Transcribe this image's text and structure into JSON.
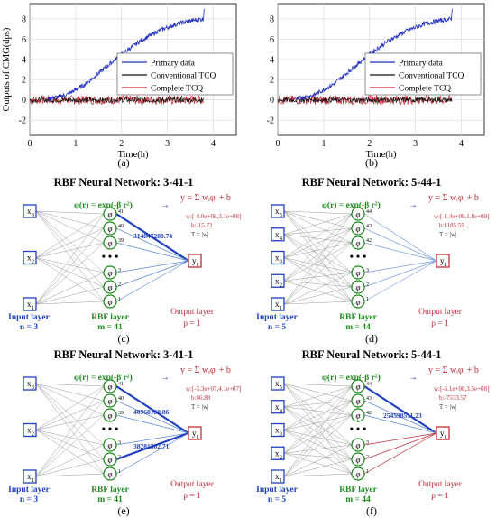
{
  "charts": [
    {
      "id": "a",
      "caption": "(a)",
      "ylabel": "Outputs of CMG(dps)",
      "xlabel": "Time(h)",
      "xticks": [
        "0",
        "1",
        "2",
        "3",
        "4"
      ],
      "yticks": [
        "8",
        "6",
        "4",
        "2",
        "0",
        "-2"
      ],
      "legend": [
        "Primary data",
        "Conventional TCQ",
        "Complete TCQ"
      ],
      "show_ylabel": true
    },
    {
      "id": "b",
      "caption": "(b)",
      "ylabel": "",
      "xlabel": "Time(h)",
      "xticks": [
        "0",
        "1",
        "2",
        "3",
        "4"
      ],
      "yticks": [
        "8",
        "6",
        "4",
        "2",
        "0",
        "-2"
      ],
      "legend": [
        "Primary data",
        "Conventional TCQ",
        "Complete TCQ"
      ],
      "show_ylabel": false
    }
  ],
  "colors": {
    "primary": "#1f2fbf",
    "conventional": "#111111",
    "complete": "#c0303a",
    "input": "#1f3fbf",
    "rbf": "#1e8a1e",
    "output": "#c0303a",
    "eq": "#1f3fbf"
  },
  "chart_data": [
    {
      "type": "line",
      "xlabel": "Time(h)",
      "ylabel": "Outputs of CMG(dps)",
      "xlim": [
        0,
        4.5
      ],
      "ylim": [
        -3.5,
        9.5
      ],
      "series": [
        {
          "name": "Primary data",
          "x": [
            0.4,
            0.8,
            1.2,
            1.6,
            2.0,
            2.4,
            2.8,
            3.2,
            3.5,
            3.8
          ],
          "values": [
            0.1,
            0.5,
            1.5,
            3.0,
            4.5,
            5.8,
            6.8,
            7.5,
            7.8,
            8.0
          ]
        },
        {
          "name": "Conventional TCQ",
          "x": [
            0,
            3.8
          ],
          "values": [
            0,
            0
          ]
        },
        {
          "name": "Complete TCQ",
          "x": [
            0,
            3.8
          ],
          "values": [
            0,
            0
          ]
        }
      ]
    },
    {
      "type": "line",
      "xlabel": "Time(h)",
      "ylabel": "",
      "xlim": [
        0,
        4.5
      ],
      "ylim": [
        -3.5,
        9.5
      ],
      "series": [
        {
          "name": "Primary data",
          "x": [
            0.4,
            0.8,
            1.2,
            1.6,
            2.0,
            2.4,
            2.8,
            3.2,
            3.5,
            3.8
          ],
          "values": [
            0.1,
            0.5,
            1.5,
            3.0,
            4.5,
            5.8,
            6.8,
            7.5,
            7.8,
            8.0
          ]
        },
        {
          "name": "Conventional TCQ",
          "x": [
            0,
            3.8
          ],
          "values": [
            0,
            0
          ]
        },
        {
          "name": "Complete TCQ",
          "x": [
            0,
            3.8
          ],
          "values": [
            0,
            0
          ]
        }
      ]
    }
  ],
  "networks": [
    {
      "id": "c",
      "caption": "(c)",
      "title": "RBF Neural Network: 3-41-1",
      "inputs": [
        "x",
        "x",
        "x"
      ],
      "input_subs": [
        "3",
        "2",
        "1"
      ],
      "input_layer": "Input layer",
      "n_label": "n = 3",
      "rbf_layer": "RBF layer",
      "m_label": "m = 41",
      "output_layer": "Output layer",
      "p_label": "p = 1",
      "phi_eq": "φ(r) = exp(-β r²)",
      "y_eq": "y = Σ wᵢφᵢ + b",
      "top_subs": [
        "41",
        "40",
        "39"
      ],
      "bottom_subs": [
        "3",
        "2",
        "1"
      ],
      "weight_label": "314847280.74",
      "weight_label2": "",
      "w_text": "w:[-4.0e+08,3.1e+08]",
      "b_text": "b:-15.72",
      "t_text": "T = |w|",
      "output": "y",
      "output_sub": "1"
    },
    {
      "id": "d",
      "caption": "(d)",
      "title": "RBF Neural Network: 5-44-1",
      "inputs": [
        "x",
        "x",
        "x",
        "x",
        "x"
      ],
      "input_subs": [
        "5",
        "4",
        "3",
        "2",
        "1"
      ],
      "input_layer": "Input layer",
      "n_label": "n = 5",
      "rbf_layer": "RBF layer",
      "m_label": "m = 44",
      "output_layer": "Output layer",
      "p_label": "p = 1",
      "phi_eq": "φ(r) = exp(-β r²)",
      "y_eq": "y = Σ wᵢφᵢ + b",
      "top_subs": [
        "44",
        "43",
        "42"
      ],
      "bottom_subs": [
        "3",
        "2",
        "1"
      ],
      "weight_label": "",
      "weight_label2": "",
      "w_text": "w:[-1.4e+09,1.8e+09]",
      "b_text": "b:1185.59",
      "t_text": "T = |w|",
      "output": "y",
      "output_sub": "1"
    },
    {
      "id": "e",
      "caption": "(e)",
      "title": "RBF Neural Network: 3-41-1",
      "inputs": [
        "x",
        "x",
        "x"
      ],
      "input_subs": [
        "3",
        "2",
        "1"
      ],
      "input_layer": "Input layer",
      "n_label": "n = 3",
      "rbf_layer": "RBF layer",
      "m_label": "m = 41",
      "output_layer": "Output layer",
      "p_label": "p = 1",
      "phi_eq": "φ(r) = exp(-β r²)",
      "y_eq": "y = Σ wᵢφᵢ + b",
      "top_subs": [
        "41",
        "40",
        "39"
      ],
      "bottom_subs": [
        "3",
        "2",
        "1"
      ],
      "weight_label": "40968180.86",
      "weight_label2": "38281502.71",
      "w_text": "w:[-5.3e+07,4.1e+07]",
      "b_text": "b:46.88",
      "t_text": "T = |w|",
      "output": "y",
      "output_sub": "1"
    },
    {
      "id": "f",
      "caption": "(f)",
      "title": "RBF Neural Network: 5-44-1",
      "inputs": [
        "x",
        "x",
        "x",
        "x",
        "x"
      ],
      "input_subs": [
        "5",
        "4",
        "3",
        "2",
        "1"
      ],
      "input_layer": "Input layer",
      "n_label": "n = 5",
      "rbf_layer": "RBF layer",
      "m_label": "m = 44",
      "output_layer": "Output layer",
      "p_label": "p = 1",
      "phi_eq": "φ(r) = exp(-β r²)",
      "y_eq": "y = Σ wᵢφᵢ + b",
      "top_subs": [
        "44",
        "43",
        "42"
      ],
      "bottom_subs": [
        "3",
        "2",
        "1"
      ],
      "weight_label": "254598511.23",
      "weight_label2": "",
      "w_text": "w:[-6.1e+08,3.5e+08]",
      "b_text": "b:-7533.57",
      "t_text": "T = |w|",
      "output": "y",
      "output_sub": "1"
    }
  ]
}
